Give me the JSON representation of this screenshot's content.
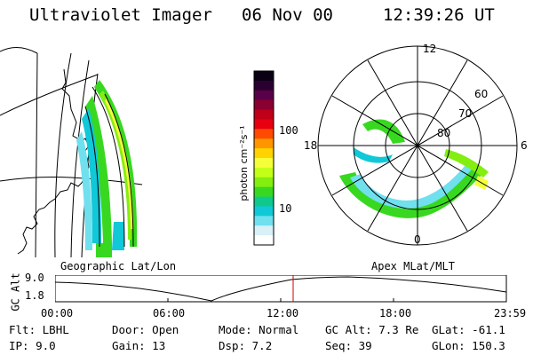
{
  "header": {
    "instrument": "Ultraviolet Imager",
    "date": "06 Nov 00",
    "time": "12:39:26 UT"
  },
  "geo_panel": {
    "label": "Geographic Lat/Lon"
  },
  "polar_panel": {
    "label": "Apex MLat/MLT",
    "mlt_labels": [
      "12",
      "18",
      "6",
      "0"
    ],
    "lat_labels": [
      "60",
      "70",
      "80"
    ]
  },
  "colorbar": {
    "unit_label": "photon cm⁻²s⁻¹",
    "ticks": [
      "100",
      "10"
    ],
    "colors": [
      "#0a0014",
      "#2a0030",
      "#5a0048",
      "#8a0030",
      "#c00018",
      "#e80010",
      "#ff4a00",
      "#ff9600",
      "#ffd200",
      "#f4ff3a",
      "#c4ff18",
      "#84ee10",
      "#38d820",
      "#10c88c",
      "#10c8d8",
      "#70e0ee",
      "#d8f0f6",
      "#ffffff"
    ]
  },
  "altitude_plot": {
    "axis_label": "GC Alt",
    "y_ticks": [
      "9.0",
      "1.8"
    ],
    "x_ticks": [
      "00:00",
      "06:00",
      "12:00",
      "18:00",
      "23:59"
    ],
    "current_time_marker_color": "#cc0000",
    "current_time_hours": 12.66
  },
  "info_rows": [
    [
      {
        "label": "Flt:",
        "value": "LBHL"
      },
      {
        "label": "Door:",
        "value": "Open"
      },
      {
        "label": "Mode:",
        "value": "Normal"
      },
      {
        "label": "GC Alt:",
        "value": "7.3 Re"
      },
      {
        "label": "GLat:",
        "value": "-61.1"
      }
    ],
    [
      {
        "label": "IP:",
        "value": "9.0"
      },
      {
        "label": "Gain:",
        "value": "13"
      },
      {
        "label": "Dsp:",
        "value": "7.2"
      },
      {
        "label": "Seq:",
        "value": "39"
      },
      {
        "label": "GLon:",
        "value": "150.3"
      }
    ]
  ]
}
